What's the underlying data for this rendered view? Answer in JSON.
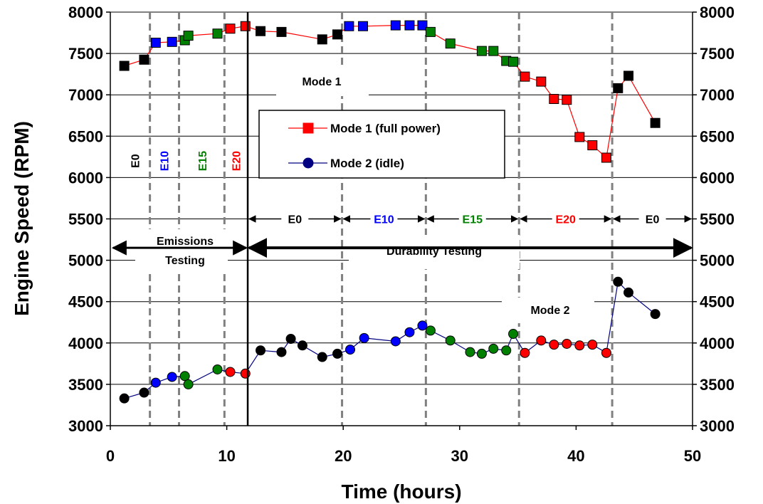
{
  "chart_data": {
    "type": "scatter",
    "xlabel": "Time (hours)",
    "ylabel": "Engine Speed (RPM)",
    "xlim": [
      0,
      50
    ],
    "ylim": [
      3000,
      8000
    ],
    "x_ticks": [
      "0",
      "10",
      "20",
      "30",
      "40",
      "50"
    ],
    "y_ticks": [
      "3000",
      "3500",
      "4000",
      "4500",
      "5000",
      "5500",
      "6000",
      "6500",
      "7000",
      "7500",
      "8000"
    ],
    "grid": "horizontal",
    "legend_position": "center",
    "fuel_colors": {
      "E0": "#000000",
      "E10": "#0000ff",
      "E15": "#008000",
      "E20": "#ff0000"
    },
    "fuel_boundaries": [
      3.4,
      5.9,
      9.8,
      19.9,
      27.1,
      35.1,
      43.1
    ],
    "test_boundary": 11.8,
    "series": [
      {
        "name": "Mode 1 (full power)",
        "line_color": "#ff0000",
        "marker": "square",
        "points": [
          {
            "x": 1.2,
            "y": 7350,
            "fuel": "E0"
          },
          {
            "x": 2.9,
            "y": 7425,
            "fuel": "E0"
          },
          {
            "x": 3.9,
            "y": 7630,
            "fuel": "E10"
          },
          {
            "x": 5.3,
            "y": 7640,
            "fuel": "E10"
          },
          {
            "x": 6.4,
            "y": 7660,
            "fuel": "E15"
          },
          {
            "x": 6.7,
            "y": 7715,
            "fuel": "E15"
          },
          {
            "x": 9.2,
            "y": 7740,
            "fuel": "E15"
          },
          {
            "x": 10.3,
            "y": 7800,
            "fuel": "E20"
          },
          {
            "x": 11.6,
            "y": 7830,
            "fuel": "E20"
          },
          {
            "x": 12.9,
            "y": 7770,
            "fuel": "E0"
          },
          {
            "x": 14.7,
            "y": 7760,
            "fuel": "E0"
          },
          {
            "x": 18.2,
            "y": 7670,
            "fuel": "E0"
          },
          {
            "x": 19.5,
            "y": 7730,
            "fuel": "E0"
          },
          {
            "x": 20.5,
            "y": 7830,
            "fuel": "E10"
          },
          {
            "x": 21.7,
            "y": 7830,
            "fuel": "E10"
          },
          {
            "x": 24.5,
            "y": 7840,
            "fuel": "E10"
          },
          {
            "x": 25.7,
            "y": 7840,
            "fuel": "E10"
          },
          {
            "x": 26.8,
            "y": 7840,
            "fuel": "E10"
          },
          {
            "x": 27.5,
            "y": 7760,
            "fuel": "E15"
          },
          {
            "x": 29.2,
            "y": 7620,
            "fuel": "E15"
          },
          {
            "x": 31.9,
            "y": 7530,
            "fuel": "E15"
          },
          {
            "x": 32.9,
            "y": 7530,
            "fuel": "E15"
          },
          {
            "x": 34.0,
            "y": 7410,
            "fuel": "E15"
          },
          {
            "x": 34.6,
            "y": 7400,
            "fuel": "E15"
          },
          {
            "x": 35.6,
            "y": 7220,
            "fuel": "E20"
          },
          {
            "x": 37.0,
            "y": 7160,
            "fuel": "E20"
          },
          {
            "x": 38.1,
            "y": 6950,
            "fuel": "E20"
          },
          {
            "x": 39.2,
            "y": 6940,
            "fuel": "E20"
          },
          {
            "x": 40.3,
            "y": 6490,
            "fuel": "E20"
          },
          {
            "x": 41.4,
            "y": 6390,
            "fuel": "E20"
          },
          {
            "x": 42.6,
            "y": 6240,
            "fuel": "E20"
          },
          {
            "x": 43.6,
            "y": 7080,
            "fuel": "E0"
          },
          {
            "x": 44.5,
            "y": 7230,
            "fuel": "E0"
          },
          {
            "x": 46.8,
            "y": 6660,
            "fuel": "E0"
          }
        ]
      },
      {
        "name": "Mode 2 (idle)",
        "line_color": "#000080",
        "marker": "circle",
        "points": [
          {
            "x": 1.2,
            "y": 3330,
            "fuel": "E0"
          },
          {
            "x": 2.9,
            "y": 3400,
            "fuel": "E0"
          },
          {
            "x": 3.9,
            "y": 3520,
            "fuel": "E10"
          },
          {
            "x": 5.3,
            "y": 3590,
            "fuel": "E10"
          },
          {
            "x": 6.4,
            "y": 3600,
            "fuel": "E15"
          },
          {
            "x": 6.7,
            "y": 3500,
            "fuel": "E15"
          },
          {
            "x": 9.2,
            "y": 3680,
            "fuel": "E15"
          },
          {
            "x": 10.3,
            "y": 3650,
            "fuel": "E20"
          },
          {
            "x": 11.6,
            "y": 3630,
            "fuel": "E20"
          },
          {
            "x": 12.9,
            "y": 3910,
            "fuel": "E0"
          },
          {
            "x": 14.7,
            "y": 3890,
            "fuel": "E0"
          },
          {
            "x": 15.5,
            "y": 4050,
            "fuel": "E0"
          },
          {
            "x": 16.5,
            "y": 3970,
            "fuel": "E0"
          },
          {
            "x": 18.2,
            "y": 3830,
            "fuel": "E0"
          },
          {
            "x": 19.5,
            "y": 3870,
            "fuel": "E0"
          },
          {
            "x": 20.6,
            "y": 3920,
            "fuel": "E10"
          },
          {
            "x": 21.8,
            "y": 4060,
            "fuel": "E10"
          },
          {
            "x": 24.5,
            "y": 4020,
            "fuel": "E10"
          },
          {
            "x": 25.7,
            "y": 4130,
            "fuel": "E10"
          },
          {
            "x": 26.8,
            "y": 4210,
            "fuel": "E10"
          },
          {
            "x": 27.5,
            "y": 4150,
            "fuel": "E15"
          },
          {
            "x": 29.2,
            "y": 4030,
            "fuel": "E15"
          },
          {
            "x": 30.9,
            "y": 3890,
            "fuel": "E15"
          },
          {
            "x": 31.9,
            "y": 3870,
            "fuel": "E15"
          },
          {
            "x": 32.9,
            "y": 3930,
            "fuel": "E15"
          },
          {
            "x": 34.0,
            "y": 3910,
            "fuel": "E15"
          },
          {
            "x": 34.6,
            "y": 4110,
            "fuel": "E15"
          },
          {
            "x": 35.6,
            "y": 3880,
            "fuel": "E20"
          },
          {
            "x": 37.0,
            "y": 4030,
            "fuel": "E20"
          },
          {
            "x": 38.1,
            "y": 3980,
            "fuel": "E20"
          },
          {
            "x": 39.2,
            "y": 3990,
            "fuel": "E20"
          },
          {
            "x": 40.3,
            "y": 3970,
            "fuel": "E20"
          },
          {
            "x": 41.4,
            "y": 3980,
            "fuel": "E20"
          },
          {
            "x": 42.6,
            "y": 3880,
            "fuel": "E20"
          },
          {
            "x": 43.6,
            "y": 4740,
            "fuel": "E0"
          },
          {
            "x": 44.5,
            "y": 4610,
            "fuel": "E0"
          },
          {
            "x": 46.8,
            "y": 4350,
            "fuel": "E0"
          }
        ]
      }
    ],
    "annotations": {
      "mode1_label": "Mode 1",
      "mode2_label": "Mode 2",
      "emissions_line1": "Emissions",
      "emissions_line2": "Testing",
      "durability": "Durability Testing",
      "emissions_fuels": [
        "E0",
        "E10",
        "E15",
        "E20"
      ],
      "durability_fuels": [
        "E0",
        "E10",
        "E15",
        "E20",
        "E0"
      ]
    }
  }
}
